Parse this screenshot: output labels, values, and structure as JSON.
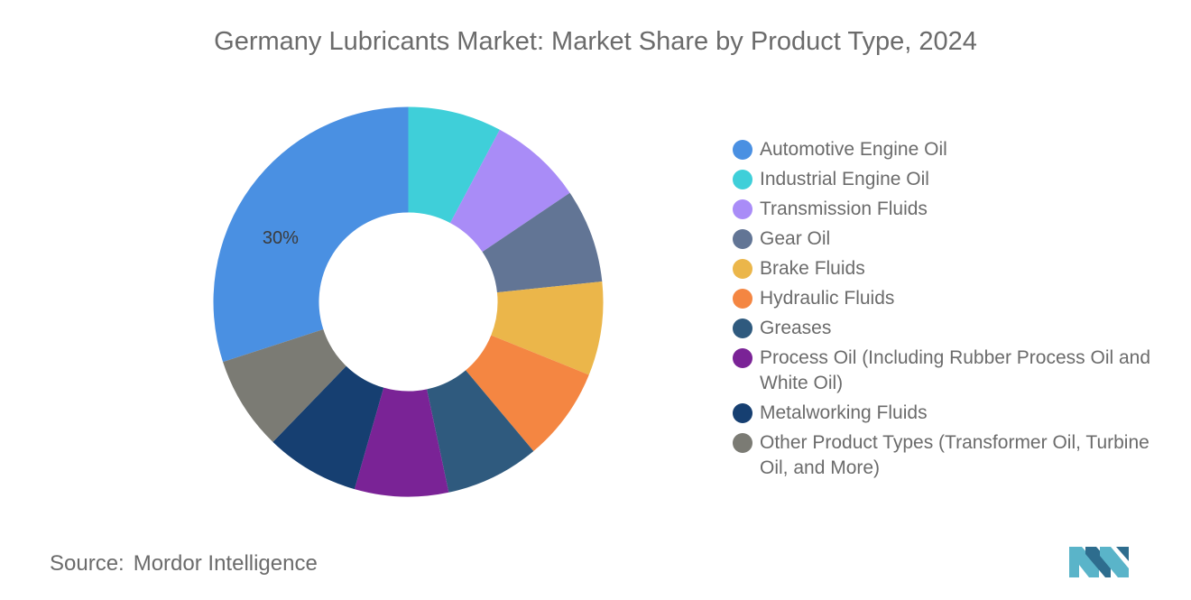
{
  "title": "Germany Lubricants Market: Market Share by Product Type, 2024",
  "chart_data": {
    "type": "pie",
    "title": "Germany Lubricants Market: Market Share by Product Type, 2024",
    "donut": true,
    "legend_position": "right",
    "series": [
      {
        "name": "Automotive Engine Oil",
        "value": 30,
        "color": "#4a90e2",
        "label": "30%"
      },
      {
        "name": "Industrial Engine Oil",
        "value": 7.78,
        "color": "#3fcfd9"
      },
      {
        "name": "Transmission Fluids",
        "value": 7.78,
        "color": "#a98cf7"
      },
      {
        "name": "Gear Oil",
        "value": 7.78,
        "color": "#627595"
      },
      {
        "name": "Brake Fluids",
        "value": 7.78,
        "color": "#ebb64a"
      },
      {
        "name": "Hydraulic Fluids",
        "value": 7.78,
        "color": "#f48642"
      },
      {
        "name": "Greases",
        "value": 7.78,
        "color": "#2f5a7e"
      },
      {
        "name": "Process Oil (Including Rubber Process Oil and White Oil)",
        "value": 7.78,
        "color": "#7a2396"
      },
      {
        "name": "Metalworking Fluids",
        "value": 7.78,
        "color": "#163f71"
      },
      {
        "name": "Other Product Types (Transformer Oil, Turbine Oil, and More)",
        "value": 7.78,
        "color": "#7b7b74"
      }
    ]
  },
  "source": {
    "label": "Source:",
    "value": "Mordor Intelligence"
  },
  "logo": {
    "icon": "mordor-intelligence-logo",
    "colors": [
      "#5ab4c9",
      "#2e6d8e"
    ]
  }
}
